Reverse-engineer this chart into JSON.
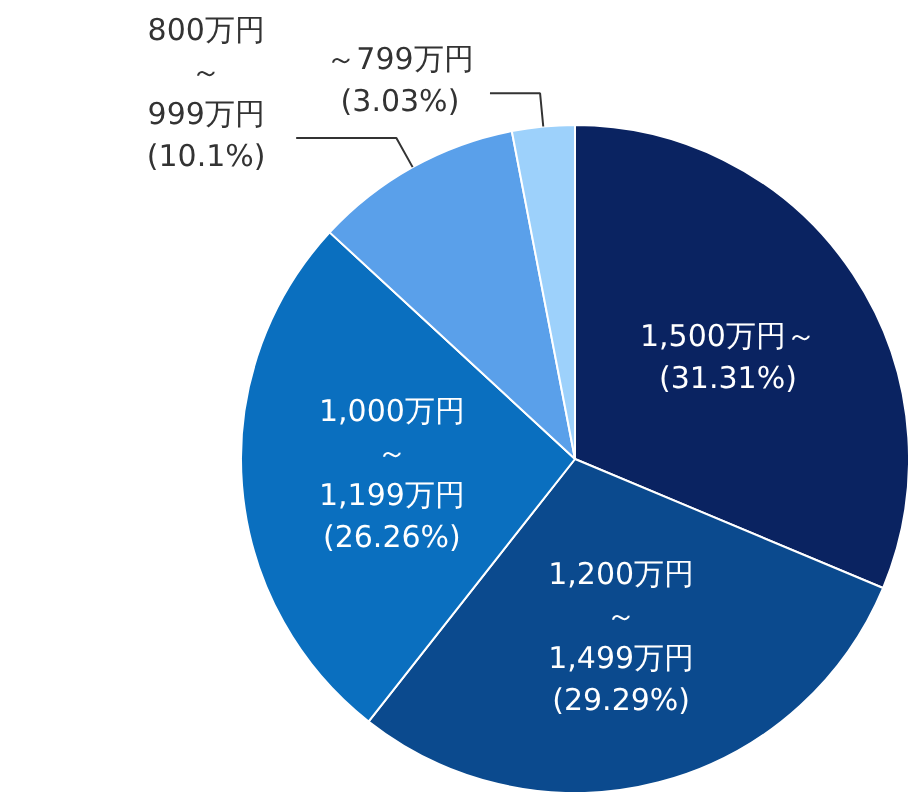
{
  "chart_data": {
    "type": "pie",
    "categories": [
      "1,500万円～",
      "1,200万円～1,499万円",
      "1,000万円～1,199万円",
      "800万円～999万円",
      "～799万円"
    ],
    "values": [
      31.31,
      29.29,
      26.26,
      10.1,
      3.03
    ],
    "value_labels": [
      "(31.31%)",
      "(29.29%)",
      "(26.26%)",
      "(10.1%)",
      "(3.03%)"
    ],
    "colors": [
      "#0a2361",
      "#0b4a8e",
      "#0a6fbf",
      "#5aa0ea",
      "#9dd1fb"
    ]
  }
}
